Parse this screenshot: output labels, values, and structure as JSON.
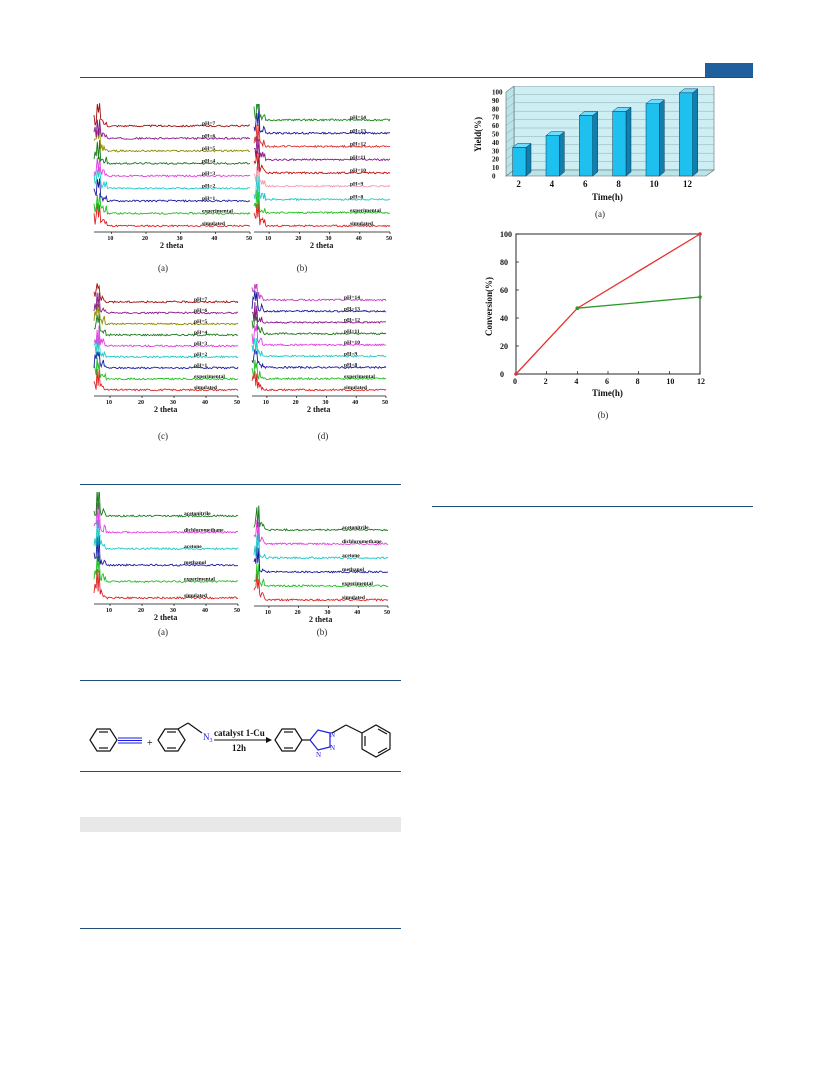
{
  "fig_ph": {
    "panels": [
      {
        "caption": "(a)",
        "xlabel": "2 theta",
        "ticks": [
          "10",
          "20",
          "30",
          "40",
          "50"
        ],
        "labels": [
          "pH=7",
          "pH=6",
          "pH=5",
          "pH=4",
          "pH=3",
          "pH=2",
          "pH=1",
          "experimental",
          "simulated"
        ],
        "colors": [
          "#a01010",
          "#8a1a8a",
          "#8a8a00",
          "#1a7a1a",
          "#e040e0",
          "#20c8c8",
          "#1a1aa0",
          "#20c020",
          "#e02020"
        ]
      },
      {
        "caption": "(b)",
        "xlabel": "2 theta",
        "ticks": [
          "10",
          "20",
          "30",
          "40",
          "50"
        ],
        "labels": [
          "pH=14",
          "pH=13",
          "pH=12",
          "pH=11",
          "pH=10",
          "pH=9",
          "pH=8",
          "experimental",
          "simulated"
        ],
        "colors": [
          "#1a8a1a",
          "#1a1aa0",
          "#e03030",
          "#8a1a8a",
          "#c01010",
          "#f0a0b0",
          "#20c8c8",
          "#20c020",
          "#e02020"
        ]
      },
      {
        "caption": "(c)",
        "xlabel": "2 theta",
        "ticks": [
          "10",
          "20",
          "30",
          "40",
          "50"
        ],
        "labels": [
          "pH=7",
          "pH=6",
          "pH=5",
          "pH=4",
          "pH=3",
          "pH=2",
          "pH=1",
          "experimental",
          "simulated"
        ],
        "colors": [
          "#a01010",
          "#8a1a8a",
          "#8a8a00",
          "#1a7a1a",
          "#e040e0",
          "#20c8c8",
          "#1a1aa0",
          "#20c020",
          "#e02020"
        ]
      },
      {
        "caption": "(d)",
        "xlabel": "2 theta",
        "ticks": [
          "10",
          "20",
          "30",
          "40",
          "50"
        ],
        "labels": [
          "pH=14",
          "pH=13",
          "pH=12",
          "pH=11",
          "pH=10",
          "pH=9",
          "pH=8",
          "experimental",
          "simulated"
        ],
        "colors": [
          "#c040c0",
          "#1a1aa0",
          "#8a1a8a",
          "#1a7a1a",
          "#e040e0",
          "#20c8c8",
          "#1a1aa0",
          "#20c020",
          "#e02020"
        ]
      }
    ]
  },
  "fig_solvent": {
    "panels": [
      {
        "caption": "(a)",
        "xlabel": "2 theta",
        "ticks": [
          "10",
          "20",
          "30",
          "40",
          "50"
        ],
        "labels": [
          "acetonitrile",
          "dichloromethane",
          "acetone",
          "methanol",
          "experimental",
          "simulated"
        ],
        "colors": [
          "#1a7a1a",
          "#e040e0",
          "#20c8c8",
          "#1a1aa0",
          "#20c020",
          "#e02020"
        ]
      },
      {
        "caption": "(b)",
        "xlabel": "2 theta",
        "ticks": [
          "10",
          "20",
          "30",
          "40",
          "50"
        ],
        "labels": [
          "acetonitrile",
          "dichloromethane",
          "acetone",
          "methanol",
          "experimental",
          "simulated"
        ],
        "colors": [
          "#1a7a1a",
          "#e040e0",
          "#20c8c8",
          "#1a1aa0",
          "#20c020",
          "#e02020"
        ]
      }
    ]
  },
  "scheme": {
    "reagent_label": "N",
    "reagent_sub": "3",
    "arrow_top": "catalyst 1-Cu",
    "arrow_bottom": "12h",
    "plus": "+",
    "triazole_n": [
      "N",
      "N",
      "N"
    ]
  },
  "chart_data": [
    {
      "type": "bar",
      "caption": "(a)",
      "categories": [
        "2",
        "4",
        "6",
        "8",
        "10",
        "12"
      ],
      "values": [
        34,
        48,
        72,
        77,
        86,
        99
      ],
      "xlabel": "Time(h)",
      "ylabel": "Yield(%)",
      "ylim": [
        0,
        100
      ],
      "yticks": [
        "0",
        "10",
        "20",
        "30",
        "40",
        "50",
        "60",
        "70",
        "80",
        "90",
        "100"
      ],
      "colors": {
        "bar": "#1ec0f0",
        "bar_side": "#0e7fae",
        "wall": "#cdeff4"
      }
    },
    {
      "type": "line",
      "caption": "(b)",
      "xlabel": "Time(h)",
      "ylabel": "Conversion(%)",
      "xlim": [
        0,
        12
      ],
      "ylim": [
        0,
        100
      ],
      "xticks": [
        "0",
        "2",
        "4",
        "6",
        "8",
        "10",
        "12"
      ],
      "yticks": [
        "0",
        "20",
        "40",
        "60",
        "80",
        "100"
      ],
      "series": [
        {
          "x": [
            0,
            4,
            12
          ],
          "y": [
            0,
            47,
            100
          ],
          "color": "#e83030"
        },
        {
          "x": [
            4,
            12
          ],
          "y": [
            47,
            55
          ],
          "color": "#2a9a2a"
        }
      ]
    }
  ]
}
